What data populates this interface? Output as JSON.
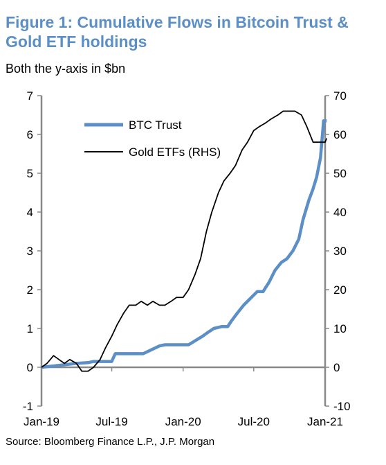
{
  "title": "Figure 1: Cumulative Flows in Bitcoin Trust & Gold ETF holdings",
  "subtitle": "Both the y-axis in $bn",
  "source": "Source:  Bloomberg Finance L.P., J.P. Morgan",
  "colors": {
    "title": "#5b8fc6",
    "btc": "#5b8fc6",
    "gold": "#000000",
    "axis": "#888888"
  },
  "chart_data": {
    "type": "line",
    "title": "Figure 1: Cumulative Flows in Bitcoin Trust & Gold ETF holdings",
    "subtitle": "Both the y-axis in $bn",
    "x_ticks": [
      "Jan-19",
      "Jul-19",
      "Jan-20",
      "Jul-20",
      "Jan-21"
    ],
    "y_left": {
      "lim": [
        -1,
        7
      ],
      "ticks": [
        "-1",
        "0",
        "1",
        "2",
        "3",
        "4",
        "5",
        "6",
        "7"
      ]
    },
    "y_right": {
      "lim": [
        -10,
        70
      ],
      "ticks": [
        "-10",
        "0",
        "10",
        "20",
        "30",
        "40",
        "50",
        "60",
        "70"
      ]
    },
    "legend": {
      "placement": "top-left",
      "entries": [
        "BTC Trust",
        "Gold ETFs (RHS)"
      ]
    },
    "grid": false,
    "series": [
      {
        "name": "BTC Trust",
        "axis": "left",
        "x": [
          "2019-01-01",
          "2019-02-15",
          "2019-04-01",
          "2019-05-01",
          "2019-05-15",
          "2019-06-15",
          "2019-07-01",
          "2019-07-10",
          "2019-08-15",
          "2019-09-20",
          "2019-11-01",
          "2019-11-15",
          "2019-12-15",
          "2020-01-15",
          "2020-02-20",
          "2020-03-05",
          "2020-03-20",
          "2020-04-10",
          "2020-04-25",
          "2020-05-05",
          "2020-05-20",
          "2020-06-05",
          "2020-06-20",
          "2020-07-10",
          "2020-07-25",
          "2020-08-10",
          "2020-08-25",
          "2020-09-10",
          "2020-09-25",
          "2020-10-10",
          "2020-10-25",
          "2020-11-05",
          "2020-11-20",
          "2020-12-01",
          "2020-12-10",
          "2020-12-20",
          "2020-12-28",
          "2021-01-05"
        ],
        "values": [
          0.0,
          0.05,
          0.1,
          0.12,
          0.15,
          0.15,
          0.15,
          0.35,
          0.35,
          0.35,
          0.55,
          0.58,
          0.58,
          0.58,
          0.8,
          0.9,
          1.0,
          1.05,
          1.05,
          1.2,
          1.4,
          1.6,
          1.75,
          1.95,
          1.95,
          2.2,
          2.5,
          2.7,
          2.8,
          3.0,
          3.3,
          3.8,
          4.3,
          4.6,
          4.9,
          5.4,
          6.35,
          6.35
        ]
      },
      {
        "name": "Gold ETFs (RHS)",
        "axis": "right",
        "x": [
          "2019-01-01",
          "2019-01-15",
          "2019-02-01",
          "2019-02-15",
          "2019-03-01",
          "2019-03-15",
          "2019-04-01",
          "2019-04-15",
          "2019-05-01",
          "2019-05-15",
          "2019-06-01",
          "2019-06-15",
          "2019-07-01",
          "2019-07-15",
          "2019-08-01",
          "2019-08-15",
          "2019-09-01",
          "2019-09-15",
          "2019-10-01",
          "2019-10-15",
          "2019-11-01",
          "2019-11-15",
          "2019-12-01",
          "2019-12-15",
          "2020-01-01",
          "2020-01-15",
          "2020-02-01",
          "2020-02-15",
          "2020-03-01",
          "2020-03-15",
          "2020-04-01",
          "2020-04-15",
          "2020-05-01",
          "2020-05-15",
          "2020-06-01",
          "2020-06-15",
          "2020-07-01",
          "2020-07-15",
          "2020-08-01",
          "2020-08-15",
          "2020-09-01",
          "2020-09-15",
          "2020-10-01",
          "2020-10-15",
          "2020-11-01",
          "2020-11-15",
          "2020-12-01",
          "2020-12-15",
          "2021-01-01",
          "2021-01-05"
        ],
        "values": [
          0,
          1,
          3,
          2,
          1,
          2,
          1,
          -1,
          -1,
          0,
          2,
          5,
          8,
          11,
          14,
          16,
          16,
          17,
          16,
          17,
          16,
          16,
          17,
          18,
          18,
          20,
          24,
          28,
          35,
          40,
          45,
          48,
          50,
          52,
          56,
          58,
          61,
          62,
          63,
          64,
          65,
          66,
          66,
          66,
          65,
          62,
          58,
          58,
          58,
          59
        ]
      }
    ]
  }
}
